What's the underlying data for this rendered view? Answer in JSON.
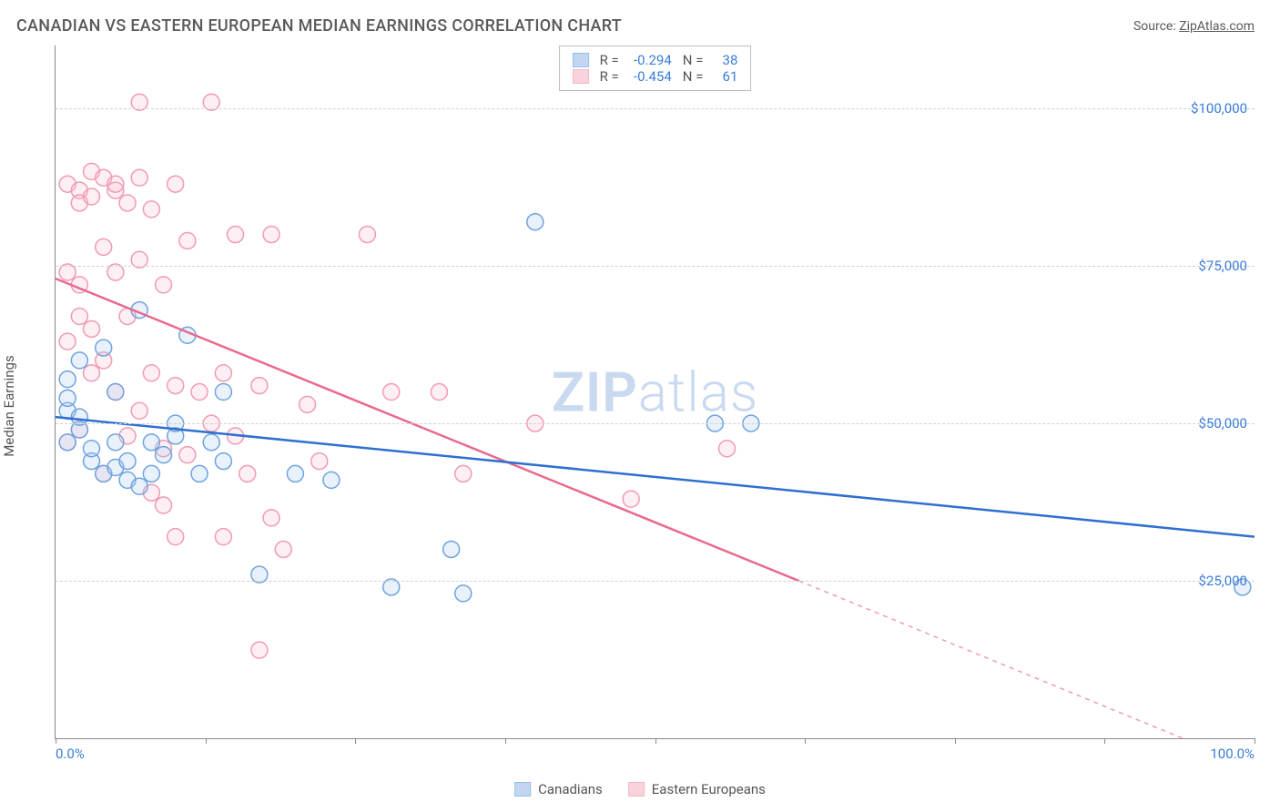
{
  "header": {
    "title": "CANADIAN VS EASTERN EUROPEAN MEDIAN EARNINGS CORRELATION CHART",
    "source_prefix": "Source: ",
    "source_link": "ZipAtlas.com"
  },
  "chart": {
    "type": "scatter",
    "y_axis_label": "Median Earnings",
    "background_color": "#ffffff",
    "grid_color": "#d0d0d0",
    "axis_color": "#888888",
    "xlim": [
      0,
      100
    ],
    "ylim": [
      0,
      110000
    ],
    "xtick_positions": [
      0,
      12.5,
      25,
      37.5,
      50,
      62.5,
      75,
      87.5,
      100
    ],
    "xtick_visible_labels": {
      "0": "0.0%",
      "100": "100.0%"
    },
    "ytick_positions": [
      25000,
      50000,
      75000,
      100000
    ],
    "ytick_labels": [
      "$25,000",
      "$50,000",
      "$75,000",
      "$100,000"
    ],
    "ytick_color": "#3b7dd8",
    "xtick_color": "#3b7dd8",
    "watermark_text_bold": "ZIP",
    "watermark_text_light": "atlas",
    "watermark_color": "#c9d9f0",
    "marker_radius": 9,
    "marker_stroke_width": 1.5,
    "marker_fill_opacity": 0.25,
    "line_width": 2.5,
    "series": [
      {
        "name": "Canadians",
        "color_stroke": "#6fa3e0",
        "color_fill": "#a8c6ec",
        "line_color": "#2f6fd0",
        "R": "-0.294",
        "N": "38",
        "points": [
          [
            1,
            52000
          ],
          [
            1,
            54000
          ],
          [
            1,
            57000
          ],
          [
            2,
            49000
          ],
          [
            2,
            60000
          ],
          [
            2,
            51000
          ],
          [
            3,
            44000
          ],
          [
            3,
            46000
          ],
          [
            4,
            62000
          ],
          [
            4,
            42000
          ],
          [
            5,
            55000
          ],
          [
            5,
            43000
          ],
          [
            5,
            47000
          ],
          [
            6,
            41000
          ],
          [
            6,
            44000
          ],
          [
            7,
            68000
          ],
          [
            7,
            40000
          ],
          [
            8,
            42000
          ],
          [
            8,
            47000
          ],
          [
            9,
            45000
          ],
          [
            10,
            48000
          ],
          [
            10,
            50000
          ],
          [
            11,
            64000
          ],
          [
            12,
            42000
          ],
          [
            13,
            47000
          ],
          [
            14,
            44000
          ],
          [
            14,
            55000
          ],
          [
            17,
            26000
          ],
          [
            20,
            42000
          ],
          [
            23,
            41000
          ],
          [
            28,
            24000
          ],
          [
            33,
            30000
          ],
          [
            34,
            23000
          ],
          [
            40,
            82000
          ],
          [
            55,
            50000
          ],
          [
            58,
            50000
          ],
          [
            99,
            24000
          ],
          [
            1,
            47000
          ]
        ],
        "regression": {
          "x1": 0,
          "y1": 51000,
          "x2": 100,
          "y2": 32000
        }
      },
      {
        "name": "Eastern Europeans",
        "color_stroke": "#f19bb1",
        "color_fill": "#f7c1ce",
        "line_color": "#e86a8c",
        "R": "-0.454",
        "N": "61",
        "points": [
          [
            1,
            88000
          ],
          [
            1,
            74000
          ],
          [
            1,
            63000
          ],
          [
            2,
            87000
          ],
          [
            2,
            85000
          ],
          [
            2,
            72000
          ],
          [
            2,
            67000
          ],
          [
            2,
            49000
          ],
          [
            3,
            90000
          ],
          [
            3,
            86000
          ],
          [
            3,
            65000
          ],
          [
            3,
            58000
          ],
          [
            4,
            89000
          ],
          [
            4,
            78000
          ],
          [
            4,
            60000
          ],
          [
            4,
            42000
          ],
          [
            5,
            87000
          ],
          [
            5,
            74000
          ],
          [
            5,
            55000
          ],
          [
            5,
            88000
          ],
          [
            6,
            85000
          ],
          [
            6,
            67000
          ],
          [
            6,
            48000
          ],
          [
            7,
            101000
          ],
          [
            7,
            76000
          ],
          [
            7,
            52000
          ],
          [
            7,
            89000
          ],
          [
            8,
            84000
          ],
          [
            8,
            58000
          ],
          [
            8,
            39000
          ],
          [
            9,
            72000
          ],
          [
            9,
            46000
          ],
          [
            9,
            37000
          ],
          [
            10,
            88000
          ],
          [
            10,
            56000
          ],
          [
            10,
            32000
          ],
          [
            11,
            79000
          ],
          [
            11,
            45000
          ],
          [
            12,
            55000
          ],
          [
            13,
            101000
          ],
          [
            13,
            50000
          ],
          [
            14,
            58000
          ],
          [
            14,
            32000
          ],
          [
            15,
            48000
          ],
          [
            15,
            80000
          ],
          [
            16,
            42000
          ],
          [
            17,
            56000
          ],
          [
            17,
            14000
          ],
          [
            18,
            80000
          ],
          [
            18,
            35000
          ],
          [
            19,
            30000
          ],
          [
            21,
            53000
          ],
          [
            22,
            44000
          ],
          [
            26,
            80000
          ],
          [
            28,
            55000
          ],
          [
            32,
            55000
          ],
          [
            34,
            42000
          ],
          [
            40,
            50000
          ],
          [
            48,
            38000
          ],
          [
            56,
            46000
          ],
          [
            1,
            47000
          ]
        ],
        "regression": {
          "x1": 0,
          "y1": 73000,
          "x2": 62,
          "y2": 25000
        },
        "regression_dashed_ext": {
          "x1": 62,
          "y1": 25000,
          "x2": 94,
          "y2": 0
        }
      }
    ],
    "stats_box": {
      "rows": [
        {
          "series_idx": 0,
          "R_label": "R =",
          "N_label": "N ="
        },
        {
          "series_idx": 1,
          "R_label": "R =",
          "N_label": "N ="
        }
      ]
    },
    "bottom_legend": [
      {
        "series_idx": 0
      },
      {
        "series_idx": 1
      }
    ]
  }
}
